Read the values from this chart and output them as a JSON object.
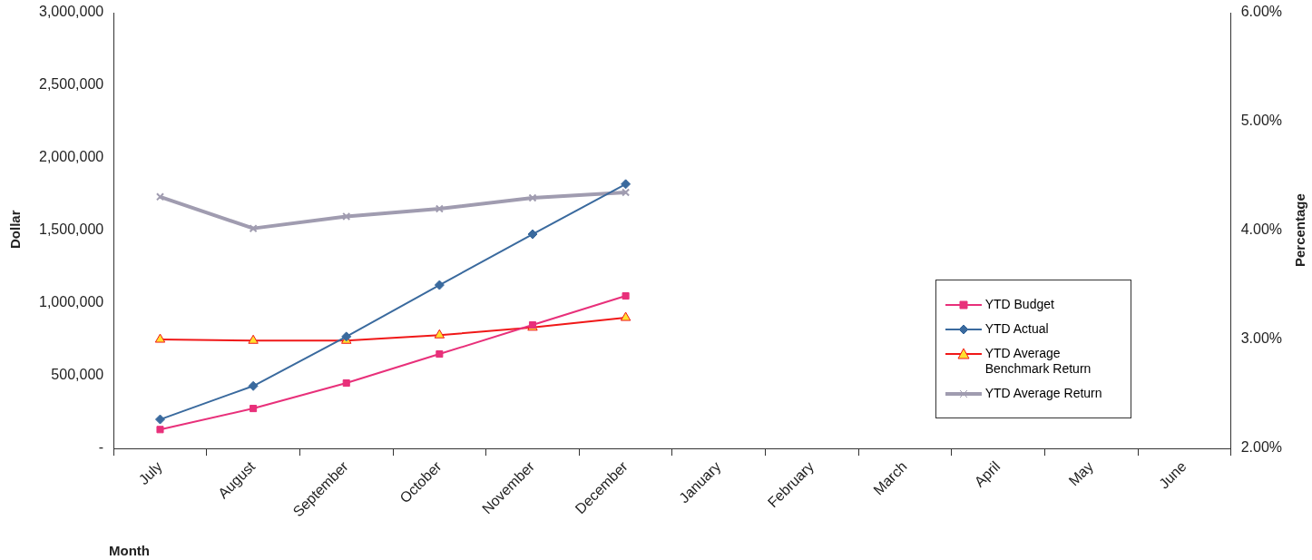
{
  "chart_data": {
    "type": "line",
    "xlabel": "Month",
    "ylabel": "Dollar",
    "y2label": "Percentage",
    "categories": [
      "July",
      "August",
      "September",
      "October",
      "November",
      "December",
      "January",
      "February",
      "March",
      "April",
      "May",
      "June"
    ],
    "ylim": [
      0,
      3000000
    ],
    "yticks": [
      {
        "value": 0,
        "label": "-"
      },
      {
        "value": 500000,
        "label": "500,000"
      },
      {
        "value": 1000000,
        "label": "1,000,000"
      },
      {
        "value": 1500000,
        "label": "1,500,000"
      },
      {
        "value": 2000000,
        "label": "2,000,000"
      },
      {
        "value": 2500000,
        "label": "2,500,000"
      },
      {
        "value": 3000000,
        "label": "3,000,000"
      }
    ],
    "y2lim": [
      2,
      6
    ],
    "y2ticks": [
      {
        "value": 2,
        "label": "2.00%"
      },
      {
        "value": 3,
        "label": "3.00%"
      },
      {
        "value": 4,
        "label": "4.00%"
      },
      {
        "value": 5,
        "label": "5.00%"
      },
      {
        "value": 6,
        "label": "6.00%"
      }
    ],
    "series": [
      {
        "name": "YTD Budget",
        "color": "#e8307a",
        "marker": "square",
        "values": [
          130000,
          275000,
          450000,
          650000,
          850000,
          1050000,
          null,
          null,
          null,
          null,
          null,
          null
        ]
      },
      {
        "name": "YTD Actual",
        "color": "#3a6a9e",
        "marker": "diamond",
        "values": [
          200000,
          430000,
          770000,
          1125000,
          1475000,
          1820000,
          null,
          null,
          null,
          null,
          null,
          null
        ]
      },
      {
        "name": "YTD Average Benchmark Return",
        "color": "#f01818",
        "marker": "triangle",
        "axis": "y2",
        "values": [
          3.0,
          2.99,
          2.99,
          3.04,
          3.11,
          3.2,
          null,
          null,
          null,
          null,
          null,
          null
        ]
      },
      {
        "name": "YTD Average Return",
        "color": "#a09cb0",
        "marker": "cross",
        "axis": "y2",
        "values": [
          4.31,
          4.02,
          4.13,
          4.2,
          4.3,
          4.35,
          null,
          null,
          null,
          null,
          null,
          null
        ]
      }
    ],
    "legend": "right",
    "grid": false
  }
}
